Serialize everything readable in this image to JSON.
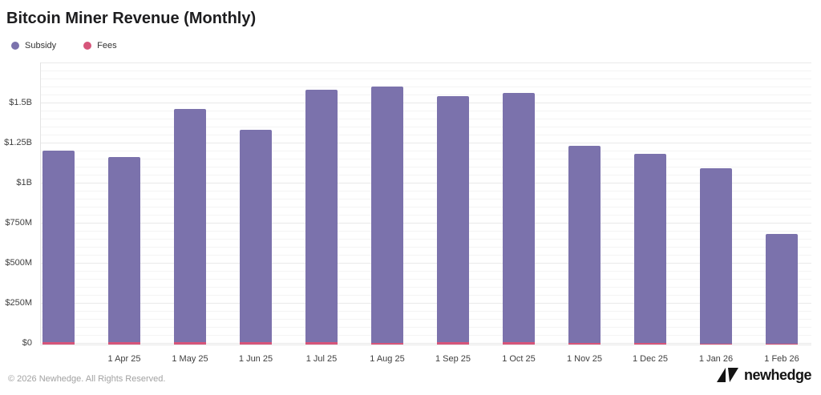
{
  "title": "Bitcoin Miner Revenue (Monthly)",
  "legend": [
    {
      "label": "Subsidy",
      "color": "#7b72ac"
    },
    {
      "label": "Fees",
      "color": "#d6557a"
    }
  ],
  "footer": {
    "copyright": "© 2026 Newhedge. All Rights Reserved.",
    "brand": "newhedge"
  },
  "colors": {
    "subsidy_bar": "#7b72ac",
    "fees_bar": "#d6557a",
    "grid_minor": "#f4f4f4",
    "grid_major": "#e9e9e9"
  },
  "chart_data": {
    "type": "bar",
    "title": "Bitcoin Miner Revenue (Monthly)",
    "categories": [
      "",
      "1 Apr 25",
      "1 May 25",
      "1 Jun 25",
      "1 Jul 25",
      "1 Aug 25",
      "1 Sep 25",
      "1 Oct 25",
      "1 Nov 25",
      "1 Dec 25",
      "1 Jan 26",
      "1 Feb 26"
    ],
    "series": [
      {
        "name": "Subsidy",
        "color": "#7b72ac",
        "values_musd": [
          1210,
          1170,
          1470,
          1340,
          1590,
          1610,
          1550,
          1570,
          1240,
          1190,
          1100,
          690
        ]
      },
      {
        "name": "Fees",
        "color": "#d6557a",
        "values_musd": [
          15,
          13,
          14,
          13,
          13,
          12,
          14,
          13,
          11,
          12,
          7,
          6
        ]
      }
    ],
    "bar_style": "overlapping",
    "xlabel": "",
    "ylabel": "",
    "ylim_musd": [
      0,
      1750
    ],
    "grid": true,
    "grid_minor_step_musd": 50,
    "grid_major_step_musd": 250,
    "legend_position": "top-left",
    "y_ticks": [
      {
        "label": "$1.5B",
        "value_musd": 1500
      },
      {
        "label": "$1.25B",
        "value_musd": 1250
      },
      {
        "label": "$1B",
        "value_musd": 1000
      },
      {
        "label": "$750M",
        "value_musd": 750
      },
      {
        "label": "$500M",
        "value_musd": 500
      },
      {
        "label": "$250M",
        "value_musd": 250
      },
      {
        "label": "$0",
        "value_musd": 0
      }
    ]
  }
}
